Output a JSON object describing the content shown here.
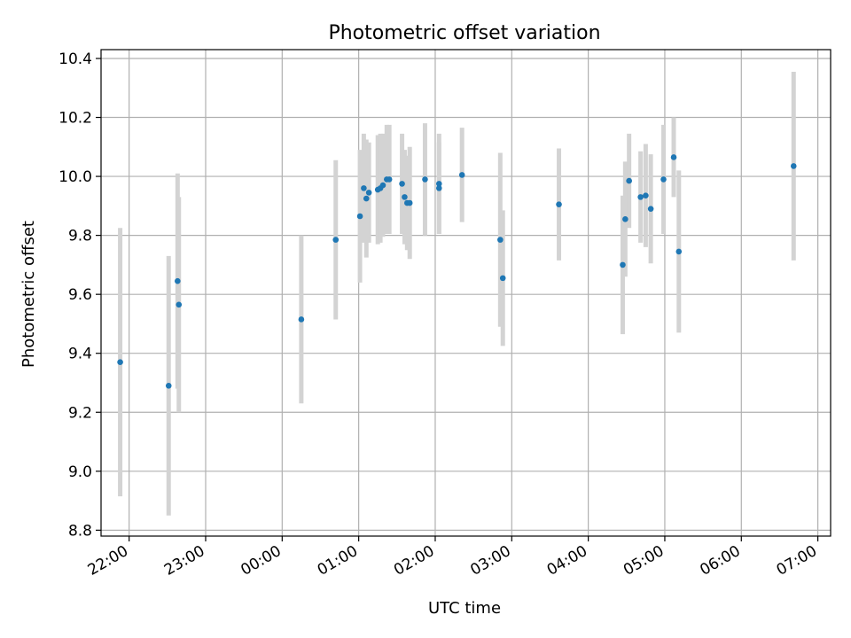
{
  "chart_data": {
    "type": "scatter",
    "title": "Photometric offset variation",
    "xlabel": "UTC time",
    "ylabel": "Photometric offset",
    "x_unit": "UTC time of day (hours)",
    "xlim": [
      "21:38",
      "07:10"
    ],
    "ylim": [
      8.78,
      10.43
    ],
    "xticks": [
      {
        "t": "22:00",
        "label": "22:00"
      },
      {
        "t": "23:00",
        "label": "23:00"
      },
      {
        "t": "00:00",
        "label": "00:00"
      },
      {
        "t": "01:00",
        "label": "01:00"
      },
      {
        "t": "02:00",
        "label": "02:00"
      },
      {
        "t": "03:00",
        "label": "03:00"
      },
      {
        "t": "04:00",
        "label": "04:00"
      },
      {
        "t": "05:00",
        "label": "05:00"
      },
      {
        "t": "06:00",
        "label": "06:00"
      },
      {
        "t": "07:00",
        "label": "07:00"
      }
    ],
    "yticks": [
      {
        "v": 8.8,
        "label": "8.8"
      },
      {
        "v": 9.0,
        "label": "9.0"
      },
      {
        "v": 9.2,
        "label": "9.2"
      },
      {
        "v": 9.4,
        "label": "9.4"
      },
      {
        "v": 9.6,
        "label": "9.6"
      },
      {
        "v": 9.8,
        "label": "9.8"
      },
      {
        "v": 10.0,
        "label": "10.0"
      },
      {
        "v": 10.2,
        "label": "10.2"
      },
      {
        "v": 10.4,
        "label": "10.4"
      }
    ],
    "grid": true,
    "colors": {
      "point": "#1f77b4",
      "errorbar": "#d3d3d3",
      "grid": "#b0b0b0",
      "axis": "#000000"
    },
    "points": [
      {
        "t": "21:53",
        "y": 9.37,
        "err": 0.455
      },
      {
        "t": "22:31",
        "y": 9.29,
        "err": 0.44
      },
      {
        "t": "22:38",
        "y": 9.645,
        "err": 0.365
      },
      {
        "t": "22:39",
        "y": 9.565,
        "err": 0.365
      },
      {
        "t": "00:15",
        "y": 9.515,
        "err": 0.285
      },
      {
        "t": "00:42",
        "y": 9.785,
        "err": 0.27
      },
      {
        "t": "01:01",
        "y": 9.865,
        "err": 0.225
      },
      {
        "t": "01:04",
        "y": 9.96,
        "err": 0.185
      },
      {
        "t": "01:06",
        "y": 9.925,
        "err": 0.2
      },
      {
        "t": "01:08",
        "y": 9.945,
        "err": 0.17
      },
      {
        "t": "01:15",
        "y": 9.955,
        "err": 0.185
      },
      {
        "t": "01:17",
        "y": 9.96,
        "err": 0.185
      },
      {
        "t": "01:19",
        "y": 9.97,
        "err": 0.175
      },
      {
        "t": "01:22",
        "y": 9.99,
        "err": 0.185
      },
      {
        "t": "01:24",
        "y": 9.99,
        "err": 0.185
      },
      {
        "t": "01:34",
        "y": 9.975,
        "err": 0.17
      },
      {
        "t": "01:36",
        "y": 9.93,
        "err": 0.16
      },
      {
        "t": "01:38",
        "y": 9.91,
        "err": 0.16
      },
      {
        "t": "01:40",
        "y": 9.91,
        "err": 0.19
      },
      {
        "t": "01:52",
        "y": 9.99,
        "err": 0.19
      },
      {
        "t": "02:03",
        "y": 9.975,
        "err": 0.17
      },
      {
        "t": "02:03",
        "y": 9.96,
        "err": 0.155
      },
      {
        "t": "02:21",
        "y": 10.005,
        "err": 0.16
      },
      {
        "t": "02:51",
        "y": 9.785,
        "err": 0.295
      },
      {
        "t": "02:53",
        "y": 9.655,
        "err": 0.23
      },
      {
        "t": "03:37",
        "y": 9.905,
        "err": 0.19
      },
      {
        "t": "04:27",
        "y": 9.7,
        "err": 0.235
      },
      {
        "t": "04:29",
        "y": 9.855,
        "err": 0.195
      },
      {
        "t": "04:32",
        "y": 9.985,
        "err": 0.16
      },
      {
        "t": "04:41",
        "y": 9.93,
        "err": 0.155
      },
      {
        "t": "04:45",
        "y": 9.935,
        "err": 0.175
      },
      {
        "t": "04:49",
        "y": 9.89,
        "err": 0.185
      },
      {
        "t": "04:59",
        "y": 9.99,
        "err": 0.185
      },
      {
        "t": "05:07",
        "y": 10.065,
        "err": 0.135
      },
      {
        "t": "05:11",
        "y": 9.745,
        "err": 0.275
      },
      {
        "t": "06:41",
        "y": 10.035,
        "err": 0.32
      }
    ]
  }
}
